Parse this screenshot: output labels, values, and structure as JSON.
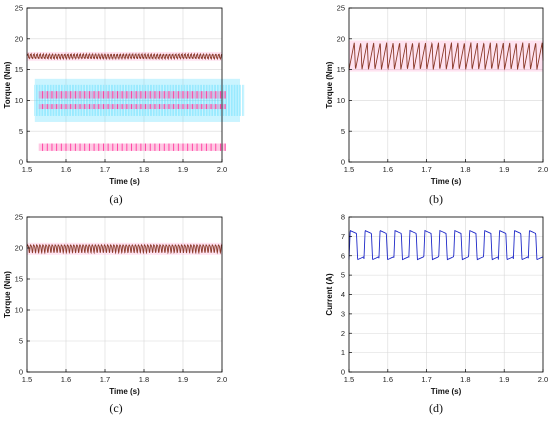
{
  "chart_data": [
    {
      "panel": "a",
      "caption": "(a)",
      "type": "line",
      "xlabel": "Time (s)",
      "ylabel": "Torque (Nm)",
      "xlim": [
        1.5,
        2.0
      ],
      "ylim": [
        0,
        25
      ],
      "xticks": [
        "1.5",
        "1.6",
        "1.7",
        "1.8",
        "1.9",
        "2.0"
      ],
      "yticks": [
        "0",
        "5",
        "10",
        "15",
        "20",
        "25"
      ],
      "grid": true,
      "series": [
        {
          "color": "#8b3a2a",
          "band_color": "#ff80c0",
          "x": [
            1.5,
            1.525,
            1.55,
            1.575,
            1.6,
            1.625,
            1.65,
            1.675,
            1.7,
            1.725,
            1.75,
            1.775,
            1.8,
            1.825,
            1.85,
            1.875,
            1.9,
            1.925,
            1.95,
            1.975,
            2.0
          ],
          "y": [
            17.3,
            17.0,
            17.5,
            16.8,
            17.4,
            17.0,
            17.5,
            16.9,
            17.3,
            17.0,
            17.5,
            16.8,
            17.4,
            17.0,
            17.5,
            16.9,
            17.3,
            17.0,
            17.5,
            16.8,
            17.3
          ],
          "ripple_period": 0.0079,
          "ripple_amplitude": 0.35
        }
      ],
      "overlay_bands": [
        {
          "color": "#40d8ff",
          "y_range": [
            6.5,
            13.5
          ]
        },
        {
          "color": "#ff60b0",
          "y_range": [
            10.3,
            11.5
          ]
        },
        {
          "color": "#ff60b0",
          "y_range": [
            8.6,
            9.4
          ]
        },
        {
          "color": "#ff60b0",
          "y_range": [
            1.8,
            3.0
          ]
        }
      ]
    },
    {
      "panel": "b",
      "caption": "(b)",
      "type": "line",
      "xlabel": "Time (s)",
      "ylabel": "Torque (Nm)",
      "xlim": [
        1.5,
        2.0
      ],
      "ylim": [
        0,
        25
      ],
      "xticks": [
        "1.5",
        "1.6",
        "1.7",
        "1.8",
        "1.9",
        "2.0"
      ],
      "yticks": [
        "0",
        "5",
        "10",
        "15",
        "20",
        "25"
      ],
      "grid": true,
      "series": [
        {
          "color": "#8b3a2a",
          "band_color": "#ff80c0",
          "x": [
            1.5,
            1.508,
            1.516,
            1.524,
            1.532,
            1.54,
            1.548,
            1.556,
            1.564,
            1.572,
            1.58
          ],
          "y": [
            15.0,
            19.4,
            15.0,
            19.4,
            15.0,
            19.4,
            15.0,
            19.4,
            15.0,
            19.4,
            15.0
          ],
          "ripple_period": 0.0167,
          "ripple_min": 15.0,
          "ripple_max": 19.4
        }
      ]
    },
    {
      "panel": "c",
      "caption": "(c)",
      "type": "line",
      "xlabel": "Time (s)",
      "ylabel": "Torque (Nm)",
      "xlim": [
        1.5,
        2.0
      ],
      "ylim": [
        0,
        25
      ],
      "xticks": [
        "1.5",
        "1.6",
        "1.7",
        "1.8",
        "1.9",
        "2.0"
      ],
      "yticks": [
        "0",
        "5",
        "10",
        "15",
        "20",
        "25"
      ],
      "grid": true,
      "series": [
        {
          "color": "#8b3a2a",
          "band_color": "#ff80c0",
          "mean": 20.0,
          "ripple_period": 0.0079,
          "ripple_amplitude": 0.6
        }
      ]
    },
    {
      "panel": "d",
      "caption": "(d)",
      "type": "line",
      "xlabel": "Time (s)",
      "ylabel": "Current (A)",
      "xlim": [
        1.5,
        2.0
      ],
      "ylim": [
        0,
        8
      ],
      "xticks": [
        "1.5",
        "1.6",
        "1.7",
        "1.8",
        "1.9",
        "2.0"
      ],
      "yticks": [
        "0",
        "1",
        "2",
        "3",
        "4",
        "5",
        "6",
        "7",
        "8"
      ],
      "grid": true,
      "series": [
        {
          "color": "#1e28c8",
          "ripple_period": 0.0385,
          "low": 5.8,
          "high": 7.3
        }
      ]
    }
  ]
}
